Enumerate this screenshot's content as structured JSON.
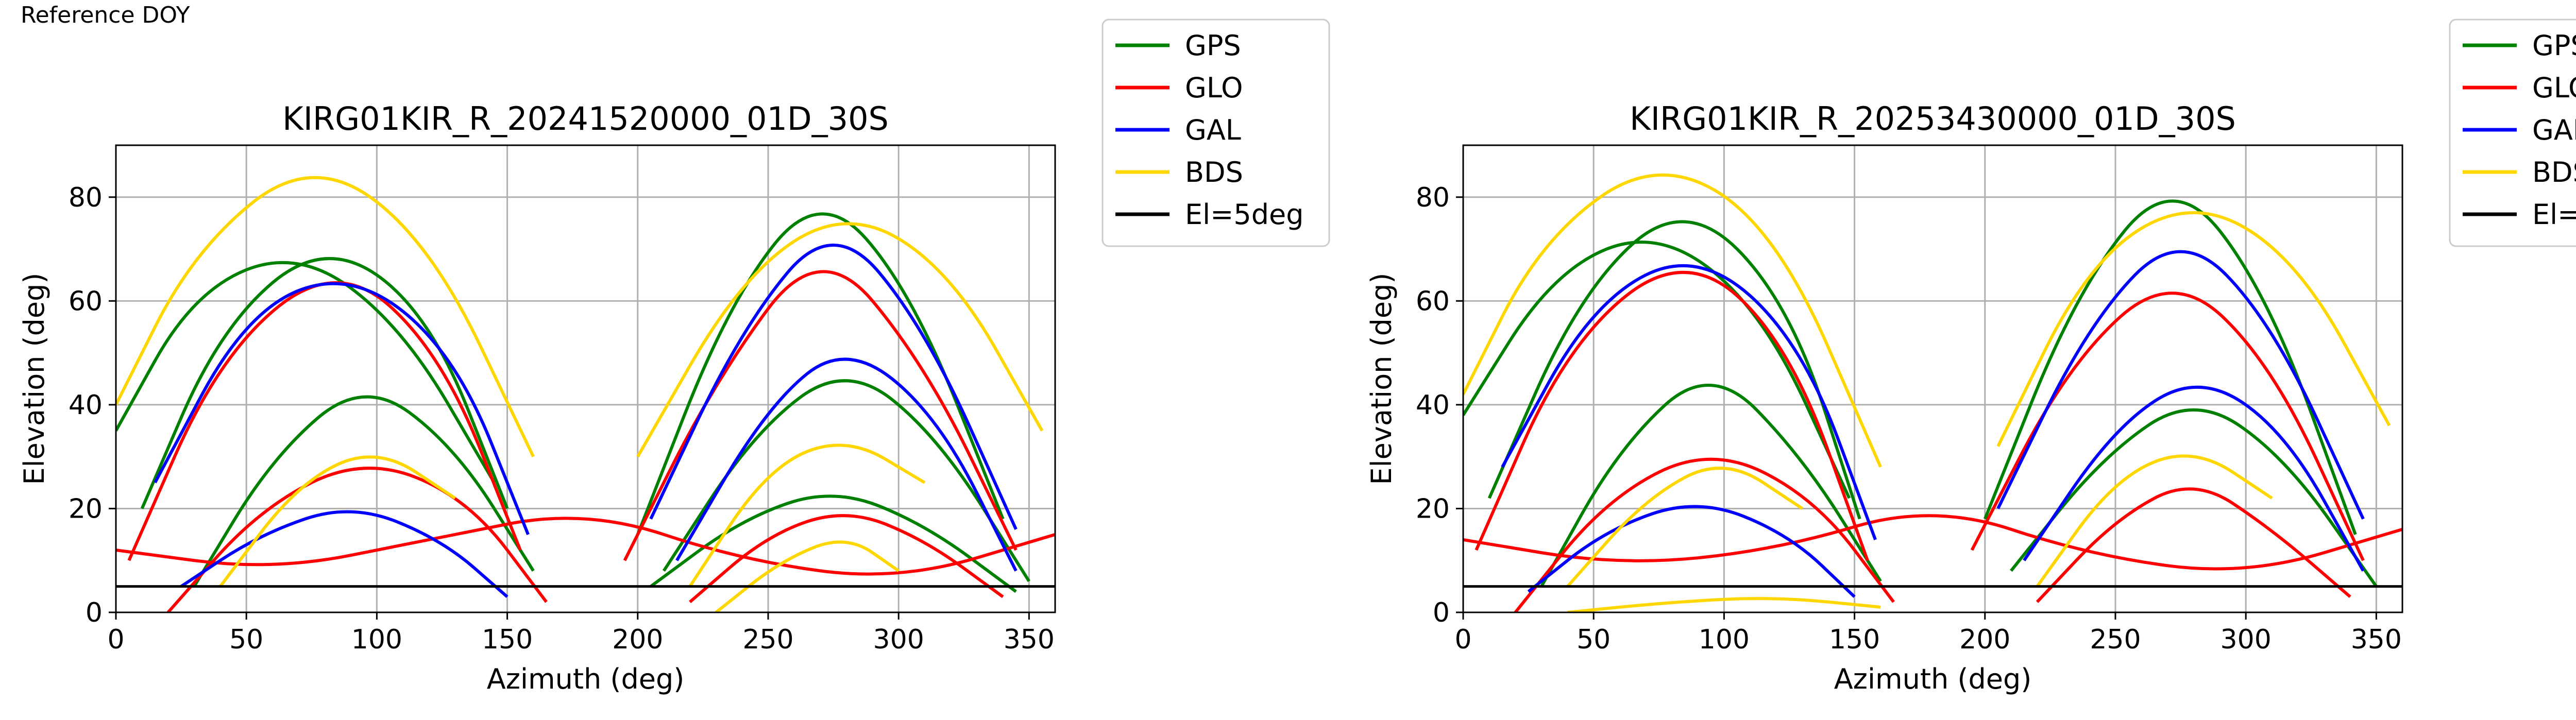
{
  "figure_label": "Reference DOY",
  "colors": {
    "GPS": "#008000",
    "GLO": "#ff0000",
    "GAL": "#0000ff",
    "BDS": "#ffd700",
    "El=5deg": "#000000"
  },
  "chart_data": [
    {
      "type": "scatter",
      "title": "KIRG01KIR_R_20241520000_01D_30S",
      "xlabel": "Azimuth (deg)",
      "ylabel": "Elevation (deg)",
      "xlim": [
        0,
        360
      ],
      "ylim": [
        0,
        90
      ],
      "xticks": [
        "0",
        "50",
        "100",
        "150",
        "200",
        "250",
        "300",
        "350"
      ],
      "yticks": [
        "0",
        "20",
        "40",
        "60",
        "80"
      ],
      "grid": true,
      "legend": "outside-top-right",
      "series": [
        {
          "name": "GPS",
          "tracks": [
            {
              "x": [
                10,
                40,
                80,
                120,
                150
              ],
              "y": [
                20,
                55,
                72,
                58,
                20
              ]
            },
            {
              "x": [
                30,
                60,
                95,
                130,
                160
              ],
              "y": [
                5,
                30,
                45,
                32,
                8
              ]
            },
            {
              "x": [
                200,
                235,
                270,
                305,
                340
              ],
              "y": [
                15,
                60,
                82,
                62,
                18
              ]
            },
            {
              "x": [
                210,
                245,
                280,
                315,
                350
              ],
              "y": [
                8,
                35,
                48,
                34,
                6
              ]
            },
            {
              "x": [
                0,
                30,
                70,
                110,
                145
              ],
              "y": [
                35,
                62,
                70,
                55,
                25
              ]
            },
            {
              "x": [
                205,
                240,
                275,
                310,
                345
              ],
              "y": [
                5,
                18,
                24,
                17,
                4
              ]
            }
          ]
        },
        {
          "name": "GLO",
          "tracks": [
            {
              "x": [
                5,
                40,
                85,
                125,
                155
              ],
              "y": [
                10,
                50,
                68,
                50,
                12
              ]
            },
            {
              "x": [
                20,
                55,
                95,
                135,
                165
              ],
              "y": [
                0,
                20,
                30,
                22,
                2
              ]
            },
            {
              "x": [
                195,
                230,
                270,
                310,
                345
              ],
              "y": [
                10,
                45,
                72,
                48,
                12
              ]
            },
            {
              "x": [
                220,
                250,
                280,
                310,
                340
              ],
              "y": [
                2,
                15,
                20,
                14,
                3
              ]
            },
            {
              "x": [
                0,
                60,
                120,
                180,
                240,
                300,
                360
              ],
              "y": [
                12,
                8,
                14,
                20,
                10,
                6,
                15
              ]
            }
          ]
        },
        {
          "name": "GAL",
          "tracks": [
            {
              "x": [
                15,
                50,
                90,
                130,
                158
              ],
              "y": [
                25,
                58,
                66,
                50,
                15
              ]
            },
            {
              "x": [
                25,
                55,
                90,
                125,
                150
              ],
              "y": [
                5,
                15,
                21,
                14,
                3
              ]
            },
            {
              "x": [
                205,
                240,
                275,
                310,
                345
              ],
              "y": [
                18,
                55,
                76,
                55,
                16
              ]
            },
            {
              "x": [
                215,
                250,
                280,
                315,
                345
              ],
              "y": [
                10,
                40,
                52,
                38,
                8
              ]
            }
          ]
        },
        {
          "name": "BDS",
          "tracks": [
            {
              "x": [
                0,
                30,
                75,
                120,
                160
              ],
              "y": [
                40,
                70,
                88,
                72,
                30
              ]
            },
            {
              "x": [
                40,
                70,
                100,
                130
              ],
              "y": [
                5,
                25,
                32,
                22
              ]
            },
            {
              "x": [
                220,
                250,
                280,
                310
              ],
              "y": [
                5,
                28,
                34,
                25
              ]
            },
            {
              "x": [
                230,
                255,
                280,
                300
              ],
              "y": [
                0,
                10,
                15,
                8
              ]
            },
            {
              "x": [
                200,
                240,
                280,
                320,
                355
              ],
              "y": [
                30,
                65,
                78,
                66,
                35
              ]
            }
          ]
        },
        {
          "name": "El=5deg",
          "tracks": [
            {
              "x": [
                0,
                360
              ],
              "y": [
                5,
                5
              ]
            }
          ]
        }
      ]
    },
    {
      "type": "scatter",
      "title": "KIRG01KIR_R_20253430000_01D_30S",
      "xlabel": "Azimuth (deg)",
      "ylabel": "Elevation (deg)",
      "xlim": [
        0,
        360
      ],
      "ylim": [
        0,
        90
      ],
      "xticks": [
        "0",
        "50",
        "100",
        "150",
        "200",
        "250",
        "300",
        "350"
      ],
      "yticks": [
        "0",
        "20",
        "40",
        "60",
        "80"
      ],
      "grid": true,
      "legend": "outside-top-right",
      "series": [
        {
          "name": "GPS",
          "tracks": [
            {
              "x": [
                10,
                45,
                85,
                125,
                152
              ],
              "y": [
                22,
                62,
                80,
                60,
                18
              ]
            },
            {
              "x": [
                30,
                60,
                95,
                130,
                160
              ],
              "y": [
                5,
                32,
                48,
                30,
                6
              ]
            },
            {
              "x": [
                200,
                235,
                272,
                308,
                342
              ],
              "y": [
                18,
                62,
                85,
                62,
                15
              ]
            },
            {
              "x": [
                210,
                245,
                280,
                315,
                350
              ],
              "y": [
                8,
                30,
                42,
                30,
                5
              ]
            },
            {
              "x": [
                0,
                35,
                75,
                115,
                148
              ],
              "y": [
                38,
                66,
                74,
                58,
                22
              ]
            }
          ]
        },
        {
          "name": "GLO",
          "tracks": [
            {
              "x": [
                5,
                40,
                85,
                125,
                155
              ],
              "y": [
                12,
                52,
                70,
                52,
                10
              ]
            },
            {
              "x": [
                20,
                55,
                95,
                135,
                165
              ],
              "y": [
                0,
                22,
                32,
                22,
                2
              ]
            },
            {
              "x": [
                195,
                232,
                272,
                310,
                345
              ],
              "y": [
                12,
                48,
                66,
                48,
                10
              ]
            },
            {
              "x": [
                220,
                250,
                280,
                310,
                340
              ],
              "y": [
                2,
                18,
                26,
                16,
                3
              ]
            },
            {
              "x": [
                0,
                60,
                120,
                180,
                240,
                300,
                360
              ],
              "y": [
                14,
                9,
                12,
                21,
                11,
                7,
                16
              ]
            }
          ]
        },
        {
          "name": "GAL",
          "tracks": [
            {
              "x": [
                15,
                50,
                90,
                130,
                158
              ],
              "y": [
                28,
                60,
                70,
                52,
                14
              ]
            },
            {
              "x": [
                25,
                55,
                90,
                125,
                150
              ],
              "y": [
                4,
                16,
                22,
                15,
                3
              ]
            },
            {
              "x": [
                205,
                240,
                275,
                310,
                345
              ],
              "y": [
                20,
                56,
                74,
                56,
                18
              ]
            },
            {
              "x": [
                215,
                250,
                282,
                315,
                345
              ],
              "y": [
                10,
                36,
                46,
                35,
                8
              ]
            }
          ]
        },
        {
          "name": "BDS",
          "tracks": [
            {
              "x": [
                0,
                30,
                75,
                120,
                160
              ],
              "y": [
                42,
                72,
                88,
                74,
                28
              ]
            },
            {
              "x": [
                40,
                70,
                100,
                130
              ],
              "y": [
                5,
                22,
                30,
                20
              ]
            },
            {
              "x": [
                220,
                250,
                280,
                310
              ],
              "y": [
                5,
                26,
                32,
                22
              ]
            },
            {
              "x": [
                205,
                240,
                280,
                320,
                355
              ],
              "y": [
                32,
                68,
                80,
                68,
                36
              ]
            },
            {
              "x": [
                40,
                80,
                120,
                160
              ],
              "y": [
                0,
                2,
                3,
                1
              ]
            }
          ]
        },
        {
          "name": "El=5deg",
          "tracks": [
            {
              "x": [
                0,
                360
              ],
              "y": [
                5,
                5
              ]
            }
          ]
        }
      ]
    }
  ]
}
